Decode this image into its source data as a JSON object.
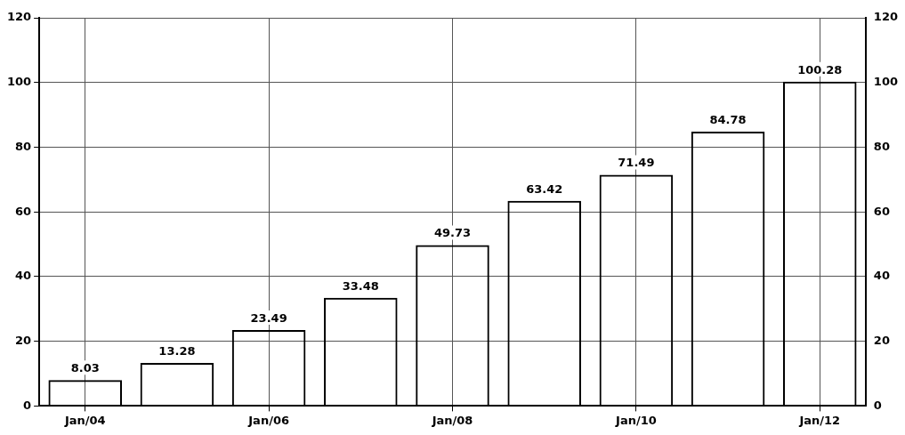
{
  "chart_data": {
    "type": "bar",
    "categories": [
      "Jan/04",
      null,
      "Jan/06",
      null,
      "Jan/08",
      null,
      "Jan/10",
      null,
      "Jan/12"
    ],
    "values": [
      8.03,
      13.28,
      23.49,
      33.48,
      49.73,
      63.42,
      71.49,
      84.78,
      100.28
    ],
    "color": "#000000",
    "ylim": [
      0,
      120
    ],
    "yticks": [
      0,
      20,
      40,
      60,
      80,
      100,
      120
    ],
    "y2lim": [
      0,
      120
    ],
    "y2ticks": [
      0,
      20,
      40,
      60,
      80,
      100,
      120
    ],
    "grid": true,
    "data_labels": true
  }
}
